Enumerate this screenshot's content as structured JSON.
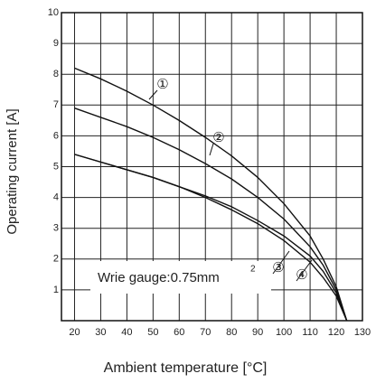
{
  "chart_data": {
    "type": "line",
    "x_label": "Ambient temperature [°C]",
    "y_label": "Operating current [A]",
    "annotation": "Wrie gauge:0.75mm",
    "annotation_superscript": "2",
    "x": [
      20,
      30,
      40,
      50,
      60,
      70,
      80,
      90,
      100,
      110,
      115,
      120,
      124
    ],
    "series": [
      {
        "name": "①",
        "color": "#111111",
        "values": [
          8.2,
          7.85,
          7.45,
          7.0,
          6.5,
          5.95,
          5.35,
          4.65,
          3.8,
          2.75,
          2.0,
          1.1,
          0
        ]
      },
      {
        "name": "②",
        "color": "#111111",
        "values": [
          6.9,
          6.6,
          6.3,
          5.95,
          5.55,
          5.1,
          4.6,
          4.0,
          3.3,
          2.4,
          1.8,
          1.0,
          0
        ]
      },
      {
        "name": "③",
        "color": "#111111",
        "values": [
          5.4,
          5.15,
          4.9,
          4.65,
          4.35,
          4.05,
          3.7,
          3.25,
          2.75,
          2.1,
          1.6,
          0.9,
          0
        ]
      },
      {
        "name": "④",
        "color": "#111111",
        "values": [
          5.4,
          5.15,
          4.9,
          4.65,
          4.35,
          4.0,
          3.6,
          3.15,
          2.6,
          1.9,
          1.4,
          0.8,
          0
        ]
      }
    ],
    "xlim": [
      15,
      130
    ],
    "ylim": [
      0,
      10
    ],
    "xticks": [
      20,
      30,
      40,
      50,
      60,
      70,
      80,
      90,
      100,
      110,
      120,
      130
    ],
    "yticks": [
      1,
      2,
      3,
      4,
      5,
      6,
      7,
      8,
      9,
      10
    ],
    "grid": true
  }
}
